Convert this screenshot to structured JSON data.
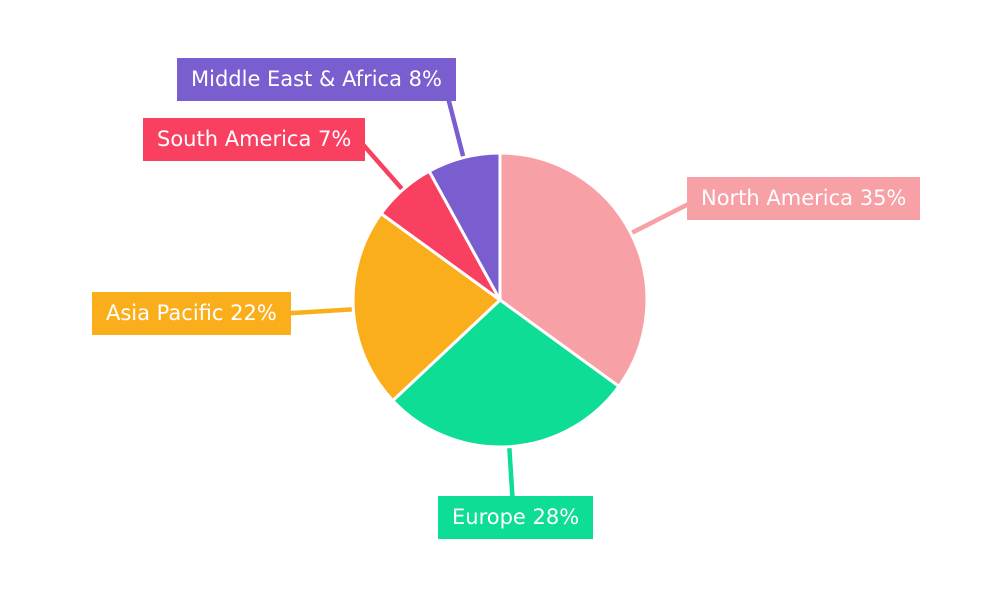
{
  "background_color": "#ffffff",
  "chart_data": {
    "type": "pie",
    "title": "",
    "direction": "clockwise",
    "start_angle_deg": 0,
    "legend_position": "outside-callout-labels",
    "label_text_color": "#ffffff",
    "separator_color": "#ffffff",
    "slices": [
      {
        "id": "north-america",
        "label": "North America",
        "value": 35,
        "unit": "%",
        "display_text": "North America 35%",
        "color": "#F7A0A6"
      },
      {
        "id": "europe",
        "label": "Europe",
        "value": 28,
        "unit": "%",
        "display_text": "Europe 28%",
        "color": "#0EDD95"
      },
      {
        "id": "asia-pacific",
        "label": "Asia Pacific",
        "value": 22,
        "unit": "%",
        "display_text": "Asia Pacific 22%",
        "color": "#FBAE1C"
      },
      {
        "id": "south-america",
        "label": "South America",
        "value": 7,
        "unit": "%",
        "display_text": "South America 7%",
        "color": "#FA4061"
      },
      {
        "id": "middle-east-africa",
        "label": "Middle East & Africa",
        "value": 8,
        "unit": "%",
        "display_text": "Middle East & Africa 8%",
        "color": "#7A5ECF"
      }
    ]
  }
}
